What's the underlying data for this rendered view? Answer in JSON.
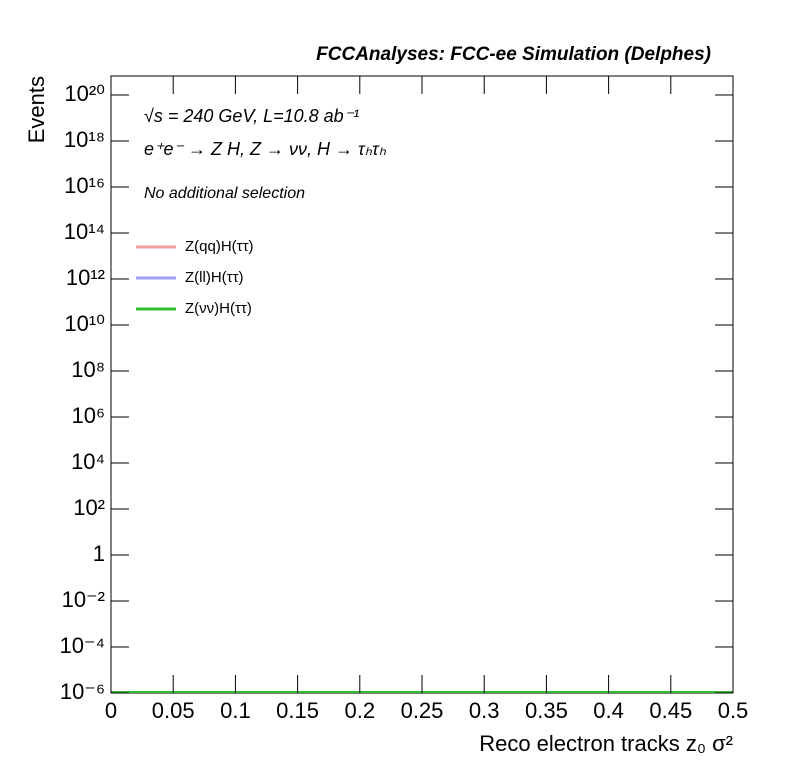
{
  "chart_data": {
    "type": "line",
    "title": "FCCAnalyses: FCC-ee Simulation (Delphes)",
    "annotations": [
      "√s = 240 GeV, L=10.8 ab⁻¹",
      "e⁺e⁻ → Z H, Z → νν, H → τₕτₕ",
      "No additional selection"
    ],
    "x_label": "Reco electron tracks z₀ σ²",
    "y_label": "Events",
    "log_y": true,
    "xlim": [
      0,
      0.5
    ],
    "xticks": [
      0,
      0.05,
      0.1,
      0.15,
      0.2,
      0.25,
      0.3,
      0.35,
      0.4,
      0.45,
      0.5
    ],
    "ylim": [
      1e-06,
      6.7e+20
    ],
    "yticks": [
      {
        "value": 1e-06,
        "label": "10⁻⁶"
      },
      {
        "value": 0.0001,
        "label": "10⁻⁴"
      },
      {
        "value": 0.01,
        "label": "10⁻²"
      },
      1,
      {
        "value": 100.0,
        "label": "10²"
      },
      {
        "value": 10000.0,
        "label": "10⁴"
      },
      {
        "value": 1000000.0,
        "label": "10⁶"
      },
      {
        "value": 100000000.0,
        "label": "10⁸"
      },
      {
        "value": 10000000000.0,
        "label": "10¹⁰"
      },
      {
        "value": 1000000000000.0,
        "label": "10¹²"
      },
      {
        "value": 100000000000000.0,
        "label": "10¹⁴"
      },
      {
        "value": 1e+16,
        "label": "10¹⁶"
      },
      {
        "value": 1e+18,
        "label": "10¹⁸"
      },
      {
        "value": 1e+20,
        "label": "10²⁰"
      }
    ],
    "series": [
      {
        "name": "Z(qq)H(ττ)",
        "color": "#f4a0a0"
      },
      {
        "name": "Z(ll)H(ττ)",
        "color": "#a0a0f8"
      },
      {
        "name": "Z(νν)H(ττ)",
        "color": "#33bb33"
      }
    ]
  }
}
